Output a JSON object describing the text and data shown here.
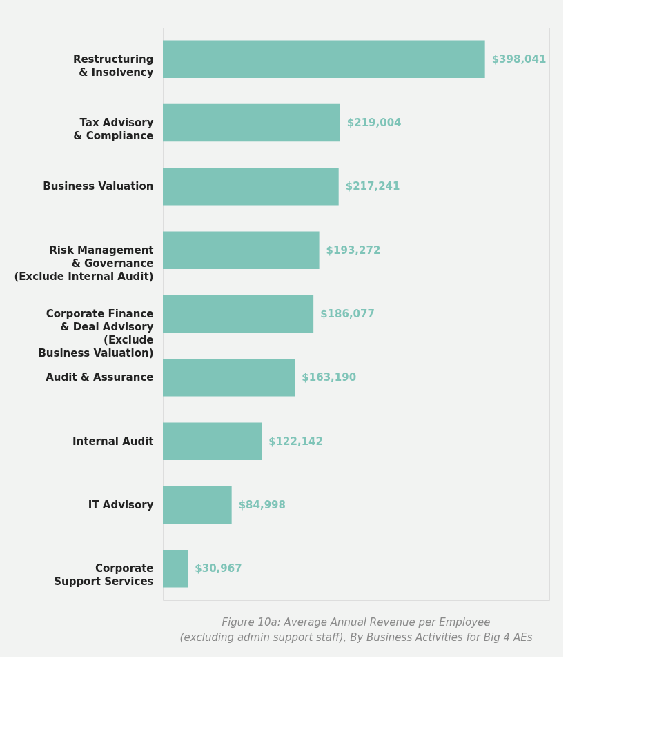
{
  "chart_data": {
    "type": "bar",
    "orientation": "horizontal",
    "title": "Figure 10a: Average Annual Revenue per Employee\n(excluding admin support staff), By Business Activities for Big 4 AEs",
    "categories": [
      "Restructuring\n& Insolvency",
      "Tax Advisory\n& Compliance",
      "Business Valuation",
      "Risk Management\n& Governance\n(Exclude Internal Audit)",
      "Corporate Finance\n& Deal Advisory\n(Exclude\nBusiness Valuation)",
      "Audit & Assurance",
      "Internal Audit",
      "IT Advisory",
      "Corporate\nSupport Services"
    ],
    "values": [
      398041,
      219004,
      217241,
      193272,
      186077,
      163190,
      122142,
      84998,
      30967
    ],
    "value_labels": [
      "$398,041",
      "$219,004",
      "$217,241",
      "$193,272",
      "$186,077",
      "$163,190",
      "$122,142",
      "$84,998",
      "$30,967"
    ],
    "color": "#7fc4b8"
  }
}
